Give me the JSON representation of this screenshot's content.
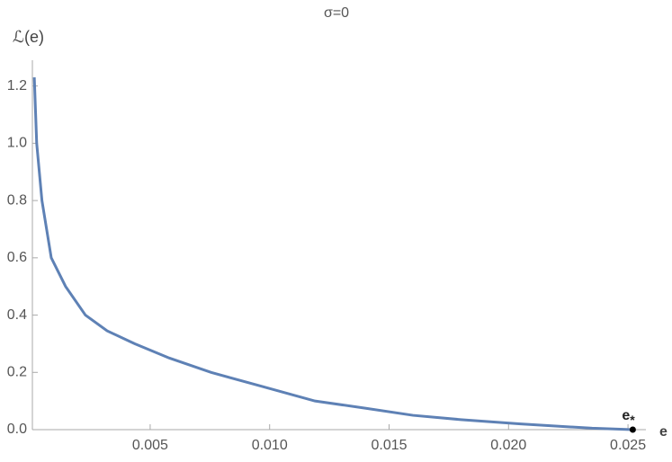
{
  "chart_data": {
    "type": "line",
    "title": "σ=0",
    "x_label": "e",
    "y_label": "ℒ(e)",
    "x": [
      0.00015,
      0.00025,
      0.00047,
      0.00086,
      0.00146,
      0.00229,
      0.0032,
      0.00435,
      0.0058,
      0.00755,
      0.0095,
      0.0119,
      0.014,
      0.016,
      0.018,
      0.0205,
      0.0235,
      0.0252
    ],
    "series": [
      {
        "name": "ℒ(e)",
        "color": "#5e81b5",
        "values": [
          1.23,
          1.0,
          0.8,
          0.6,
          0.5,
          0.4,
          0.345,
          0.3,
          0.25,
          0.2,
          0.155,
          0.1,
          0.075,
          0.05,
          0.035,
          0.02,
          0.005,
          0
        ]
      }
    ],
    "xlim": [
      7e-05,
      0.02575
    ],
    "xticks": [
      0.005,
      {
        "value": 0.01,
        "label": "0.010"
      },
      0.015,
      {
        "value": 0.02,
        "label": "0.020"
      },
      0.025
    ],
    "ylim": [
      0,
      1.29
    ],
    "yticks": [
      {
        "value": 0,
        "label": "0.0"
      },
      0.2,
      0.4,
      0.6,
      0.8,
      {
        "value": 1,
        "label": "1.0"
      },
      1.2
    ],
    "point": {
      "x": 0.0252,
      "y": 0,
      "label": "e",
      "subscript": "*",
      "color": "#000000"
    }
  }
}
